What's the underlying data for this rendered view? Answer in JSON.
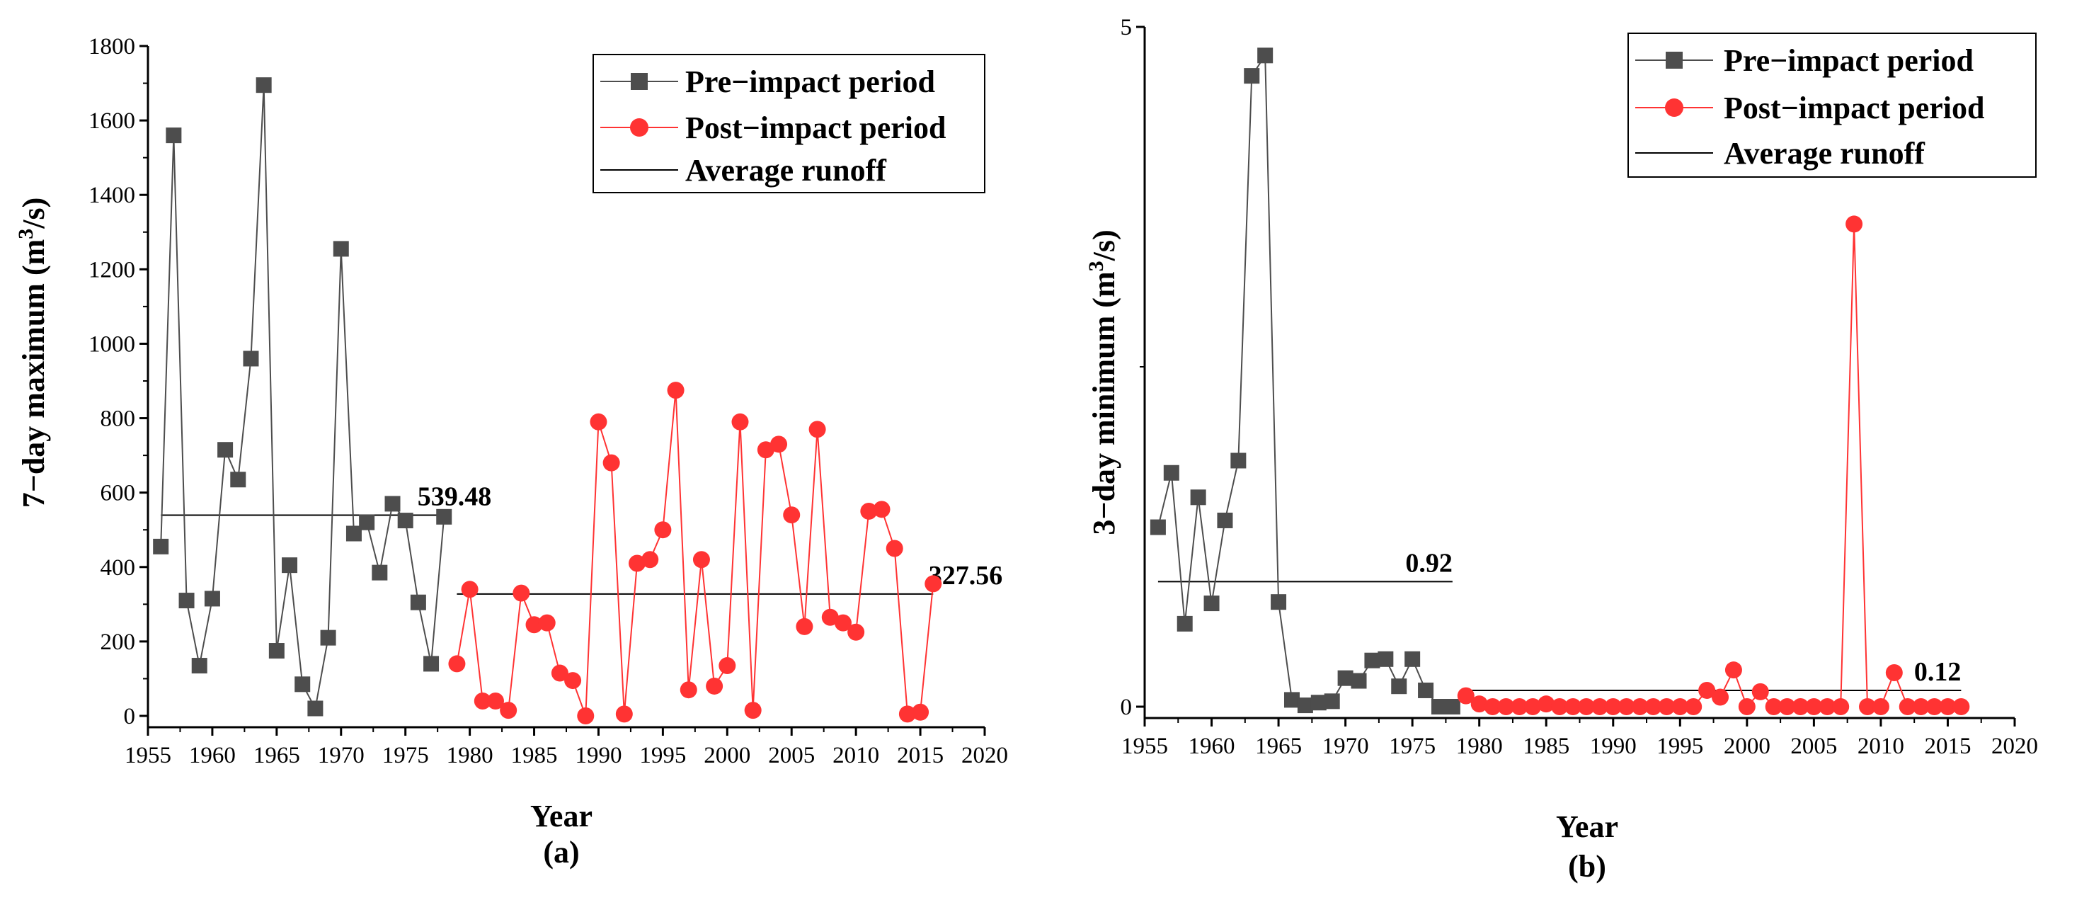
{
  "colors": {
    "pre": "#4d4d4d",
    "post": "#ff3333",
    "avg": "#000000"
  },
  "chart_data": [
    {
      "type": "line",
      "panel_label": "(a)",
      "xlabel": "Year",
      "ylabel_pre": "7−day maximum (m",
      "ylabel_sup": "3",
      "ylabel_post": "/s)",
      "xlim": [
        1955,
        2020
      ],
      "ylim": [
        0,
        1800
      ],
      "xticks": [
        1955,
        1960,
        1965,
        1970,
        1975,
        1980,
        1985,
        1990,
        1995,
        2000,
        2005,
        2010,
        2015,
        2020
      ],
      "yticks": [
        0,
        200,
        400,
        600,
        800,
        1000,
        1200,
        1400,
        1600,
        1800
      ],
      "legend": {
        "pre": "Pre−impact period",
        "post": "Post−impact period",
        "avg": "Average runoff"
      },
      "series": [
        {
          "name": "Pre−impact period",
          "x": [
            1956,
            1957,
            1958,
            1959,
            1960,
            1961,
            1962,
            1963,
            1964,
            1965,
            1966,
            1967,
            1968,
            1969,
            1970,
            1971,
            1972,
            1973,
            1974,
            1975,
            1976,
            1977,
            1978
          ],
          "values": [
            455,
            1560,
            310,
            135,
            315,
            715,
            635,
            960,
            1695,
            175,
            405,
            85,
            20,
            210,
            1255,
            490,
            520,
            385,
            570,
            525,
            305,
            140,
            535
          ]
        },
        {
          "name": "Post−impact period",
          "x": [
            1979,
            1980,
            1981,
            1982,
            1983,
            1984,
            1985,
            1986,
            1987,
            1988,
            1989,
            1990,
            1991,
            1992,
            1993,
            1994,
            1995,
            1996,
            1997,
            1998,
            1999,
            2000,
            2001,
            2002,
            2003,
            2004,
            2005,
            2006,
            2007,
            2008,
            2009,
            2010,
            2011,
            2012,
            2013,
            2014,
            2015,
            2016
          ],
          "values": [
            140,
            340,
            40,
            40,
            15,
            330,
            245,
            250,
            115,
            95,
            0,
            790,
            680,
            5,
            410,
            420,
            500,
            875,
            70,
            420,
            80,
            135,
            790,
            15,
            715,
            730,
            540,
            240,
            770,
            265,
            250,
            225,
            550,
            555,
            450,
            5,
            10,
            355
          ]
        }
      ],
      "averages": [
        {
          "label": "539.48",
          "value": 539.48,
          "x_range": [
            1956,
            1978
          ]
        },
        {
          "label": "327.56",
          "value": 327.56,
          "x_range": [
            1979,
            2016
          ]
        }
      ]
    },
    {
      "type": "line",
      "panel_label": "(b)",
      "xlabel": "Year",
      "ylabel_pre": "3−day minimum (m",
      "ylabel_sup": "3",
      "ylabel_post": "/s)",
      "xlim": [
        1955,
        2020
      ],
      "ylim": [
        0,
        5
      ],
      "xticks": [
        1955,
        1960,
        1965,
        1970,
        1975,
        1980,
        1985,
        1990,
        1995,
        2000,
        2005,
        2010,
        2015,
        2020
      ],
      "yticks": [
        0,
        5
      ],
      "legend": {
        "pre": "Pre−impact period",
        "post": "Post−impact period",
        "avg": "Average runoff"
      },
      "series": [
        {
          "name": "Pre−impact period",
          "x": [
            1956,
            1957,
            1958,
            1959,
            1960,
            1961,
            1962,
            1963,
            1964,
            1965,
            1966,
            1967,
            1968,
            1969,
            1970,
            1971,
            1972,
            1973,
            1974,
            1975,
            1976,
            1977,
            1978
          ],
          "values": [
            1.32,
            1.72,
            0.61,
            1.54,
            0.76,
            1.37,
            1.81,
            4.64,
            4.79,
            0.77,
            0.05,
            0.01,
            0.03,
            0.04,
            0.21,
            0.19,
            0.34,
            0.35,
            0.15,
            0.35,
            0.12,
            0.0,
            0.0
          ]
        },
        {
          "name": "Post−impact period",
          "x": [
            1979,
            1980,
            1981,
            1982,
            1983,
            1984,
            1985,
            1986,
            1987,
            1988,
            1989,
            1990,
            1991,
            1992,
            1993,
            1994,
            1995,
            1996,
            1997,
            1998,
            1999,
            2000,
            2001,
            2002,
            2003,
            2004,
            2005,
            2006,
            2007,
            2008,
            2009,
            2010,
            2011,
            2012,
            2013,
            2014,
            2015,
            2016
          ],
          "values": [
            0.08,
            0.02,
            0.0,
            0.0,
            0.0,
            0.0,
            0.02,
            0.0,
            0.0,
            0.0,
            0.0,
            0.0,
            0.0,
            0.0,
            0.0,
            0.0,
            0.0,
            0.0,
            0.12,
            0.07,
            0.27,
            0.0,
            0.11,
            0.0,
            0.0,
            0.0,
            0.0,
            0.0,
            0.0,
            3.55,
            0.0,
            0.0,
            0.25,
            0.0,
            0.0,
            0.0,
            0.0,
            0.0
          ]
        }
      ],
      "averages": [
        {
          "label": "0.92",
          "value": 0.92,
          "x_range": [
            1956,
            1978
          ]
        },
        {
          "label": "0.12",
          "value": 0.12,
          "x_range": [
            1979,
            2016
          ]
        }
      ]
    }
  ]
}
